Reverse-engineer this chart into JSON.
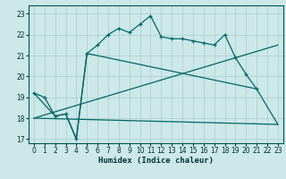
{
  "xlabel": "Humidex (Indice chaleur)",
  "bg_color": "#cce8e8",
  "grid_color": "#aacccc",
  "line_color": "#006666",
  "xlim": [
    -0.5,
    23.5
  ],
  "ylim": [
    16.8,
    23.4
  ],
  "yticks": [
    17,
    18,
    19,
    20,
    21,
    22,
    23
  ],
  "xticks": [
    0,
    1,
    2,
    3,
    4,
    5,
    6,
    7,
    8,
    9,
    10,
    11,
    12,
    13,
    14,
    15,
    16,
    17,
    18,
    19,
    20,
    21,
    22,
    23
  ],
  "main_x": [
    0,
    1,
    2,
    3,
    4,
    5,
    6,
    7,
    8,
    9,
    10,
    11,
    12,
    13,
    14,
    15,
    16,
    17,
    18,
    19,
    20,
    21
  ],
  "main_y": [
    19.2,
    19.0,
    18.1,
    18.2,
    17.0,
    21.1,
    21.5,
    22.0,
    22.3,
    22.1,
    22.5,
    22.9,
    21.9,
    21.8,
    21.8,
    21.7,
    21.6,
    21.5,
    22.0,
    20.9,
    20.1,
    19.4
  ],
  "line1_x": [
    0,
    23
  ],
  "line1_y": [
    18.0,
    17.7
  ],
  "line2_x": [
    0,
    23
  ],
  "line2_y": [
    18.0,
    21.5
  ],
  "tri_x": [
    0,
    2,
    3,
    4,
    5,
    21,
    23
  ],
  "tri_y": [
    19.2,
    18.1,
    18.2,
    17.0,
    21.1,
    19.4,
    17.7
  ]
}
